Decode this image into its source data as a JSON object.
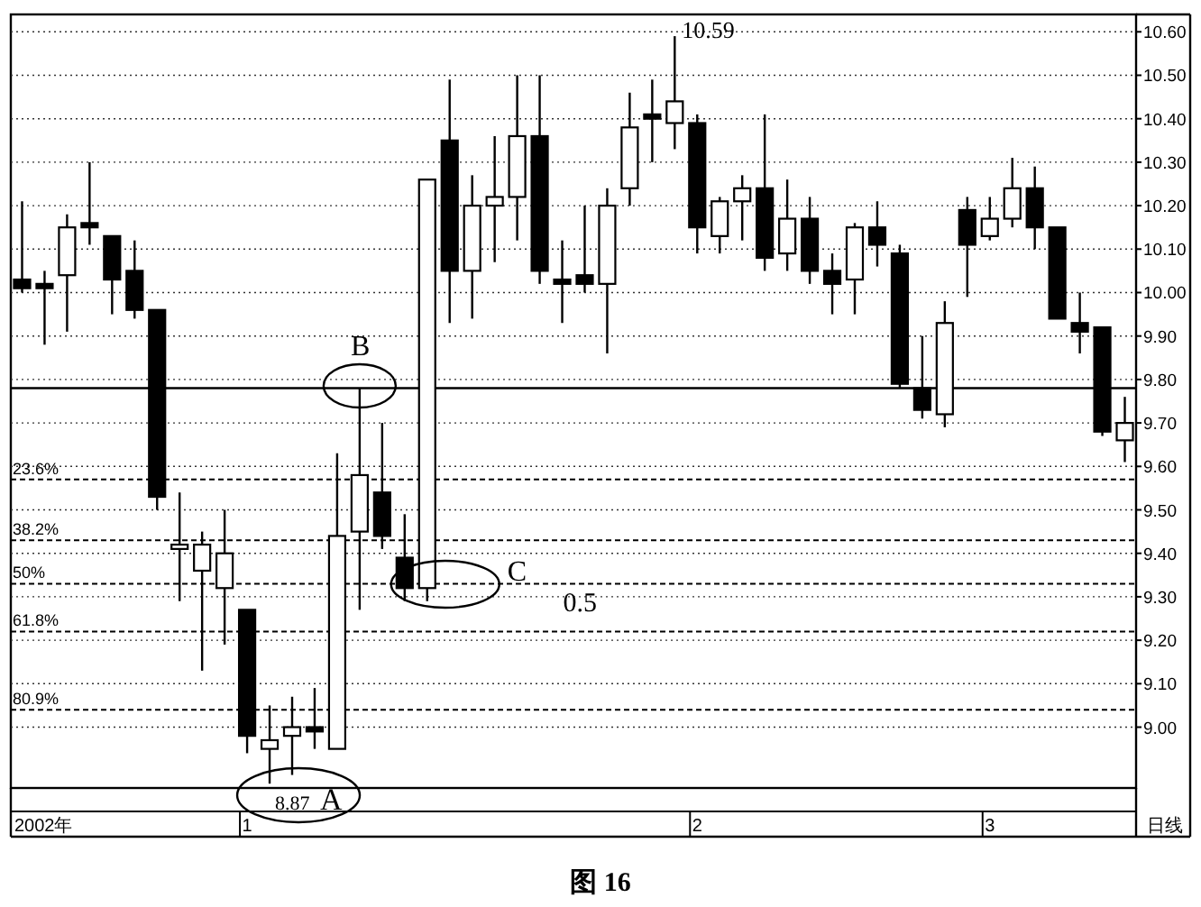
{
  "chart_data": {
    "type": "candlestick",
    "color": "#000000",
    "categories": [
      null,
      null,
      null,
      null,
      null,
      null,
      null,
      null,
      null,
      null,
      "1",
      null,
      null,
      null,
      null,
      null,
      null,
      null,
      null,
      null,
      null,
      null,
      null,
      null,
      null,
      null,
      null,
      null,
      null,
      null,
      "2",
      null,
      null,
      null,
      null,
      null,
      null,
      null,
      null,
      null,
      null,
      null,
      null,
      "3",
      null,
      null,
      null,
      null,
      null,
      null
    ],
    "ohlc": [
      [
        10.03,
        10.21,
        10.0,
        10.01
      ],
      [
        10.02,
        10.05,
        9.88,
        10.01
      ],
      [
        10.04,
        10.18,
        9.91,
        10.15
      ],
      [
        10.16,
        10.3,
        10.11,
        10.15
      ],
      [
        10.13,
        10.13,
        9.95,
        10.03
      ],
      [
        10.05,
        10.12,
        9.94,
        9.96
      ],
      [
        9.96,
        9.96,
        9.5,
        9.53
      ],
      [
        9.41,
        9.54,
        9.29,
        9.42
      ],
      [
        9.36,
        9.45,
        9.13,
        9.42
      ],
      [
        9.32,
        9.5,
        9.19,
        9.4
      ],
      [
        9.27,
        9.27,
        8.94,
        8.98
      ],
      [
        8.95,
        9.05,
        8.87,
        8.97
      ],
      [
        8.98,
        9.07,
        8.89,
        9.0
      ],
      [
        9.0,
        9.09,
        8.95,
        8.99
      ],
      [
        8.95,
        9.63,
        8.95,
        9.44
      ],
      [
        9.45,
        9.78,
        9.27,
        9.58
      ],
      [
        9.54,
        9.7,
        9.41,
        9.44
      ],
      [
        9.39,
        9.49,
        9.29,
        9.32
      ],
      [
        9.32,
        10.26,
        9.29,
        10.26
      ],
      [
        10.35,
        10.49,
        9.93,
        10.05
      ],
      [
        10.05,
        10.27,
        9.94,
        10.2
      ],
      [
        10.2,
        10.36,
        10.07,
        10.22
      ],
      [
        10.22,
        10.5,
        10.12,
        10.36
      ],
      [
        10.36,
        10.5,
        10.02,
        10.05
      ],
      [
        10.03,
        10.12,
        9.93,
        10.02
      ],
      [
        10.04,
        10.2,
        10.0,
        10.02
      ],
      [
        10.02,
        10.24,
        9.86,
        10.2
      ],
      [
        10.24,
        10.46,
        10.2,
        10.38
      ],
      [
        10.41,
        10.49,
        10.3,
        10.4
      ],
      [
        10.39,
        10.59,
        10.33,
        10.44
      ],
      [
        10.39,
        10.41,
        10.09,
        10.15
      ],
      [
        10.13,
        10.22,
        10.09,
        10.21
      ],
      [
        10.21,
        10.27,
        10.12,
        10.24
      ],
      [
        10.24,
        10.41,
        10.05,
        10.08
      ],
      [
        10.09,
        10.26,
        10.05,
        10.17
      ],
      [
        10.17,
        10.22,
        10.02,
        10.05
      ],
      [
        10.05,
        10.09,
        9.95,
        10.02
      ],
      [
        10.03,
        10.16,
        9.95,
        10.15
      ],
      [
        10.15,
        10.21,
        10.06,
        10.11
      ],
      [
        10.09,
        10.11,
        9.78,
        9.79
      ],
      [
        9.78,
        9.9,
        9.71,
        9.73
      ],
      [
        9.72,
        9.98,
        9.69,
        9.93
      ],
      [
        10.19,
        10.22,
        9.99,
        10.11
      ],
      [
        10.13,
        10.22,
        10.12,
        10.17
      ],
      [
        10.17,
        10.31,
        10.15,
        10.24
      ],
      [
        10.24,
        10.29,
        10.1,
        10.15
      ],
      [
        10.15,
        10.15,
        9.94,
        9.94
      ],
      [
        9.93,
        10.0,
        9.86,
        9.91
      ],
      [
        9.92,
        9.92,
        9.67,
        9.68
      ],
      [
        9.66,
        9.76,
        9.61,
        9.7
      ]
    ],
    "ylim": [
      8.86,
      10.64
    ],
    "yticks": [
      {
        "value": 9.0,
        "label": "9.00"
      },
      {
        "value": 9.1,
        "label": "9.10"
      },
      {
        "value": 9.2,
        "label": "9.20"
      },
      {
        "value": 9.3,
        "label": "9.30"
      },
      {
        "value": 9.4,
        "label": "9.40"
      },
      {
        "value": 9.5,
        "label": "9.50"
      },
      {
        "value": 9.6,
        "label": "9.60"
      },
      {
        "value": 9.7,
        "label": "9.70"
      },
      {
        "value": 9.8,
        "label": "9.80"
      },
      {
        "value": 9.9,
        "label": "9.90"
      },
      {
        "value": 10.0,
        "label": "10.00"
      },
      {
        "value": 10.1,
        "label": "10.10"
      },
      {
        "value": 10.2,
        "label": "10.20"
      },
      {
        "value": 10.3,
        "label": "10.30"
      },
      {
        "value": 10.4,
        "label": "10.40"
      },
      {
        "value": 10.5,
        "label": "10.50"
      },
      {
        "value": 10.6,
        "label": "10.60"
      }
    ],
    "grid": "y",
    "ref_lines": [
      {
        "axis": "y",
        "value": 9.78,
        "line_style": "solid",
        "color": "#000000"
      },
      {
        "axis": "y",
        "value": 9.57,
        "line_style": "dashed",
        "color": "#000000"
      },
      {
        "axis": "y",
        "value": 9.43,
        "line_style": "dashed",
        "color": "#000000"
      },
      {
        "axis": "y",
        "value": 9.33,
        "line_style": "dashed",
        "color": "#000000"
      },
      {
        "axis": "y",
        "value": 9.22,
        "line_style": "dashed",
        "color": "#000000"
      },
      {
        "axis": "y",
        "value": 9.04,
        "line_style": "dashed",
        "color": "#000000"
      }
    ],
    "annotations": [
      "10.59",
      "8.87",
      "A",
      "B",
      "C",
      "0.5",
      "2002年",
      "日线",
      "图 16",
      {
        "text": "23.6%",
        "y": 9.57
      },
      {
        "text": "38.2%",
        "y": 9.43
      },
      {
        "text": "50%",
        "y": 9.33
      },
      {
        "text": "61.8%",
        "y": 9.22
      },
      {
        "text": "80.9%",
        "y": 9.04
      }
    ]
  }
}
